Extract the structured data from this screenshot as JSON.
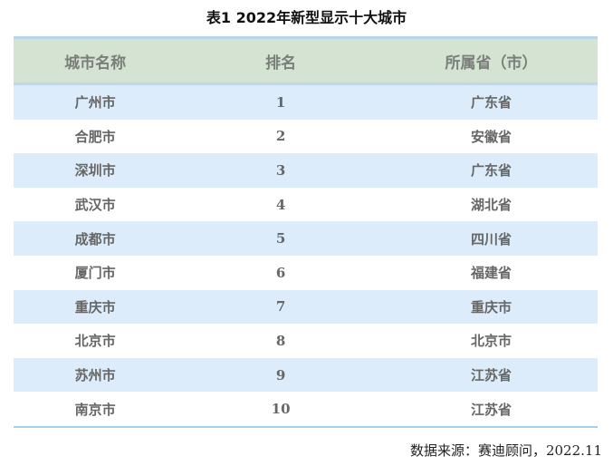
{
  "title": "表1   2022年新型显示十大城市",
  "table": {
    "headers": [
      "城市名称",
      "排名",
      "所属省（市）"
    ],
    "rows": [
      [
        "广州市",
        "1",
        "广东省"
      ],
      [
        "合肥市",
        "2",
        "安徽省"
      ],
      [
        "深圳市",
        "3",
        "广东省"
      ],
      [
        "武汉市",
        "4",
        "湖北省"
      ],
      [
        "成都市",
        "5",
        "四川省"
      ],
      [
        "厦门市",
        "6",
        "福建省"
      ],
      [
        "重庆市",
        "7",
        "重庆市"
      ],
      [
        "北京市",
        "8",
        "北京市"
      ],
      [
        "苏州市",
        "9",
        "江苏省"
      ],
      [
        "南京市",
        "10",
        "江苏省"
      ]
    ]
  },
  "source": "数据来源：赛迪顾问，2022.11",
  "colors": {
    "header_bg": "#d5e3d2",
    "stripe_bg": "#dcecfa",
    "border": "#a9d0ea"
  }
}
